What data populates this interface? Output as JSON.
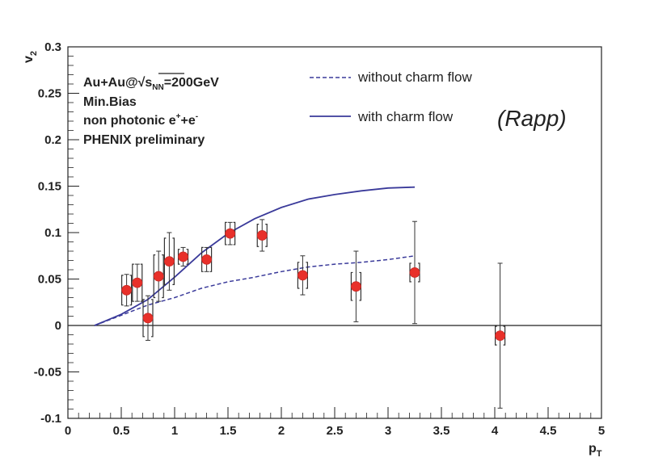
{
  "chart_data": {
    "type": "scatter",
    "xlabel": "p",
    "xlabel_sub": "T",
    "ylabel": "v",
    "ylabel_sub": "2",
    "xlim": [
      0,
      5
    ],
    "ylim": [
      -0.1,
      0.3
    ],
    "x_ticks": [
      "0",
      "0.5",
      "1",
      "1.5",
      "2",
      "2.5",
      "3",
      "3.5",
      "4",
      "4.5",
      "5"
    ],
    "y_ticks": [
      "-0.1",
      "-0.05",
      "0",
      "0.05",
      "0.1",
      "0.15",
      "0.2",
      "0.25",
      "0.3"
    ],
    "info": {
      "collision_prefix": "Au+Au@",
      "collision_sqrt_s": "s",
      "collision_sub": "NN",
      "collision_suffix": "=200GeV",
      "centrality": "Min.Bias",
      "particle_prefix": "non photonic e",
      "particle_sup1": "+",
      "particle_mid": "+e",
      "particle_sup2": "-",
      "experiment": "PHENIX preliminary",
      "experiment_color": "#e8302a"
    },
    "annotation": "(Rapp)",
    "series": [
      {
        "name": "PHENIX preliminary",
        "style": "points",
        "color": "#e8302a",
        "x": [
          0.55,
          0.65,
          0.75,
          0.85,
          0.95,
          1.08,
          1.3,
          1.52,
          1.82,
          2.2,
          2.7,
          3.25,
          4.05
        ],
        "y": [
          0.038,
          0.046,
          0.008,
          0.053,
          0.069,
          0.074,
          0.071,
          0.099,
          0.097,
          0.054,
          0.042,
          0.057,
          -0.011
        ],
        "stat_err": [
          0.017,
          0.02,
          0.024,
          0.027,
          0.031,
          0.01,
          0.013,
          0.012,
          0.017,
          0.021,
          0.038,
          0.055,
          0.078
        ],
        "sys_err": [
          0.016,
          0.02,
          0.02,
          0.023,
          0.025,
          0.008,
          0.013,
          0.012,
          0.012,
          0.014,
          0.015,
          0.01,
          0.01
        ]
      },
      {
        "name": "without charm flow",
        "style": "dashed",
        "color": "#3a3a9a",
        "x": [
          0.25,
          0.5,
          0.75,
          1.0,
          1.25,
          1.5,
          1.75,
          2.0,
          2.25,
          2.5,
          2.75,
          3.0,
          3.25
        ],
        "y": [
          0.0,
          0.011,
          0.022,
          0.03,
          0.04,
          0.047,
          0.052,
          0.058,
          0.063,
          0.066,
          0.068,
          0.071,
          0.075
        ]
      },
      {
        "name": "with charm flow",
        "style": "solid",
        "color": "#3a3a9a",
        "x": [
          0.25,
          0.5,
          0.75,
          1.0,
          1.25,
          1.5,
          1.75,
          2.0,
          2.25,
          2.5,
          2.75,
          3.0,
          3.25
        ],
        "y": [
          0.0,
          0.012,
          0.028,
          0.052,
          0.078,
          0.099,
          0.115,
          0.127,
          0.136,
          0.141,
          0.145,
          0.148,
          0.149
        ]
      }
    ],
    "colors": {
      "points": "#e8302a",
      "theory": "#3a3a9a",
      "axes": "#222222"
    }
  }
}
